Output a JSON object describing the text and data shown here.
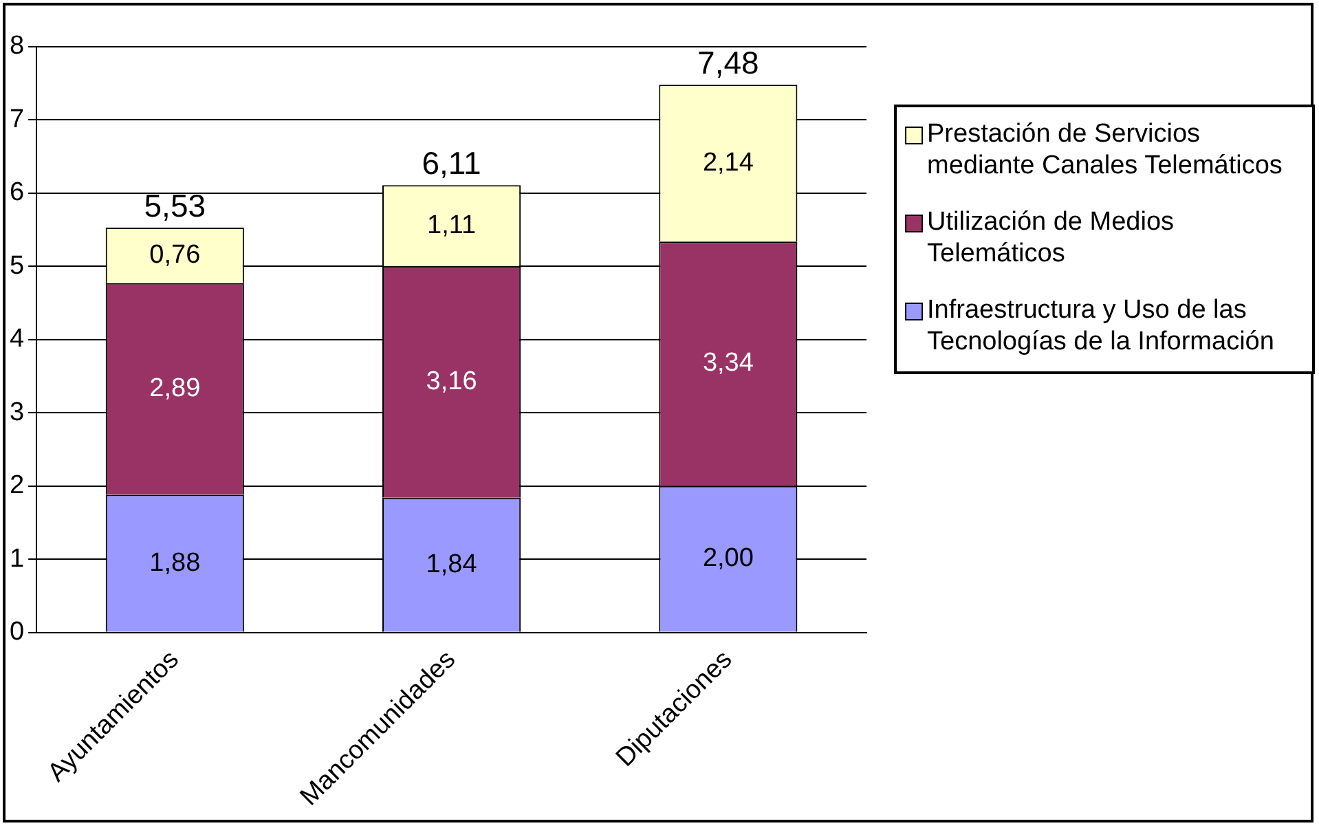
{
  "chart_data": {
    "type": "bar",
    "stacked": true,
    "categories": [
      "Ayuntamientos",
      "Mancomunidades",
      "Diputaciones"
    ],
    "series": [
      {
        "name": "Infraestructura y Uso de las Tecnologías de la Información",
        "color": "#9999ff",
        "values": [
          1.88,
          1.84,
          2.0
        ],
        "value_labels": [
          "1,88",
          "1,84",
          "2,00"
        ]
      },
      {
        "name": "Utilización de Medios Telemáticos",
        "color": "#993366",
        "values": [
          2.89,
          3.16,
          3.34
        ],
        "value_labels": [
          "2,89",
          "3,16",
          "3,34"
        ]
      },
      {
        "name": "Prestación de Servicios mediante Canales Telemáticos",
        "color": "#ffffcc",
        "values": [
          0.76,
          1.11,
          2.14
        ],
        "value_labels": [
          "0,76",
          "1,11",
          "2,14"
        ]
      }
    ],
    "totals": [
      "5,53",
      "6,11",
      "7,48"
    ],
    "ylim": [
      0,
      8
    ],
    "yticks": [
      0,
      1,
      2,
      3,
      4,
      5,
      6,
      7,
      8
    ],
    "grid": "y",
    "legend": "right"
  }
}
